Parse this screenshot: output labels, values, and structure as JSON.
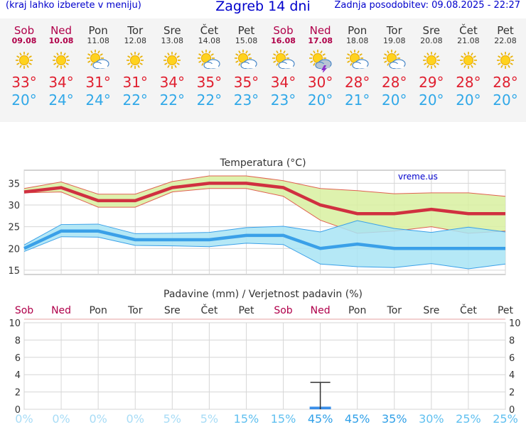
{
  "header": {
    "menu_hint": "(kraj lahko izberete v meniju)",
    "title": "Zagreb 14 dni",
    "updated": "Zadnja posodobitev: 09.08.2025 - 22:27"
  },
  "colors": {
    "max_line": "#d03040",
    "min_line": "#3aa0e8",
    "max_band": "#d8f0a0",
    "min_band": "#a8e4f4",
    "weekend": "#b0004a",
    "precip_bar": "#3a8ee8"
  },
  "days": [
    {
      "name": "Sob",
      "date": "09.08",
      "weekend": true,
      "icon": "sun-icon",
      "tmax": "33°",
      "tmin": "20°"
    },
    {
      "name": "Ned",
      "date": "10.08",
      "weekend": true,
      "icon": "sun-icon",
      "tmax": "34°",
      "tmin": "24°"
    },
    {
      "name": "Pon",
      "date": "11.08",
      "weekend": false,
      "icon": "sun-cloud-icon",
      "tmax": "31°",
      "tmin": "24°"
    },
    {
      "name": "Tor",
      "date": "12.08",
      "weekend": false,
      "icon": "sun-icon",
      "tmax": "31°",
      "tmin": "22°"
    },
    {
      "name": "Sre",
      "date": "13.08",
      "weekend": false,
      "icon": "sun-icon",
      "tmax": "34°",
      "tmin": "22°"
    },
    {
      "name": "Čet",
      "date": "14.08",
      "weekend": false,
      "icon": "sun-cloud-icon",
      "tmax": "35°",
      "tmin": "22°"
    },
    {
      "name": "Pet",
      "date": "15.08",
      "weekend": false,
      "icon": "sun-cloud-icon",
      "tmax": "35°",
      "tmin": "23°"
    },
    {
      "name": "Sob",
      "date": "16.08",
      "weekend": true,
      "icon": "sun-cloud-icon",
      "tmax": "34°",
      "tmin": "23°"
    },
    {
      "name": "Ned",
      "date": "17.08",
      "weekend": true,
      "icon": "thunderstorm-sun-icon",
      "tmax": "30°",
      "tmin": "20°"
    },
    {
      "name": "Pon",
      "date": "18.08",
      "weekend": false,
      "icon": "sun-cloud-icon",
      "tmax": "28°",
      "tmin": "21°"
    },
    {
      "name": "Tor",
      "date": "19.08",
      "weekend": false,
      "icon": "sun-cloud-icon",
      "tmax": "28°",
      "tmin": "20°"
    },
    {
      "name": "Sre",
      "date": "20.08",
      "weekend": false,
      "icon": "sun-icon",
      "tmax": "29°",
      "tmin": "20°"
    },
    {
      "name": "Čet",
      "date": "21.08",
      "weekend": false,
      "icon": "sun-icon",
      "tmax": "28°",
      "tmin": "20°"
    },
    {
      "name": "Pet",
      "date": "22.08",
      "weekend": false,
      "icon": "sun-icon",
      "tmax": "28°",
      "tmin": "20°"
    }
  ],
  "chart_data": [
    {
      "type": "line",
      "title": "Temperatura (°C)",
      "watermark": "vreme.us",
      "ylim": [
        14,
        38
      ],
      "yticks": [
        15,
        20,
        25,
        30,
        35
      ],
      "grid": true,
      "series": [
        {
          "name": "max",
          "values": [
            33,
            34,
            31,
            31,
            34,
            35,
            35,
            34,
            30,
            28,
            28,
            29,
            28,
            28
          ],
          "band_upper": [
            33.8,
            35.3,
            32.5,
            32.5,
            35.4,
            36.7,
            36.7,
            35.6,
            33.8,
            33.3,
            32.6,
            32.8,
            32.8,
            32.0
          ],
          "band_lower": [
            32.8,
            33.0,
            29.5,
            29.5,
            33.0,
            33.8,
            33.8,
            32.0,
            26.5,
            23.5,
            24.0,
            25.0,
            23.5,
            24.0
          ]
        },
        {
          "name": "min",
          "values": [
            20,
            24,
            24,
            22,
            22,
            22,
            23,
            23,
            20,
            21,
            20,
            20,
            20,
            20
          ],
          "band_upper": [
            20.8,
            25.5,
            25.6,
            23.4,
            23.5,
            23.7,
            24.8,
            25.1,
            23.8,
            26.4,
            24.6,
            23.7,
            24.9,
            23.8
          ],
          "band_lower": [
            19.3,
            22.7,
            22.6,
            20.7,
            20.6,
            20.4,
            21.2,
            20.9,
            16.4,
            15.8,
            15.6,
            16.5,
            15.3,
            16.4
          ]
        }
      ]
    },
    {
      "type": "bar",
      "title": "Padavine (mm) / Verjetnost padavin (%)",
      "categories": [
        "Sob",
        "Ned",
        "Pon",
        "Tor",
        "Sre",
        "Čet",
        "Pet",
        "Sob",
        "Ned",
        "Pon",
        "Tor",
        "Sre",
        "Čet",
        "Pet"
      ],
      "weekend": [
        true,
        true,
        false,
        false,
        false,
        false,
        false,
        true,
        true,
        false,
        false,
        false,
        false,
        false
      ],
      "ylim": [
        0,
        10
      ],
      "yticks": [
        "0",
        "2",
        "4",
        "6",
        "8",
        "10"
      ],
      "values": [
        0,
        0,
        0,
        0,
        0,
        0,
        0,
        0,
        0.3,
        0,
        0,
        0,
        0,
        0
      ],
      "error_max": [
        0,
        0,
        0,
        0,
        0,
        0,
        0,
        0,
        3.1,
        0,
        0,
        0,
        0,
        0
      ],
      "probability": [
        "0%",
        "0%",
        "0%",
        "0%",
        "5%",
        "5%",
        "15%",
        "15%",
        "45%",
        "45%",
        "35%",
        "30%",
        "25%",
        "25%"
      ]
    }
  ]
}
